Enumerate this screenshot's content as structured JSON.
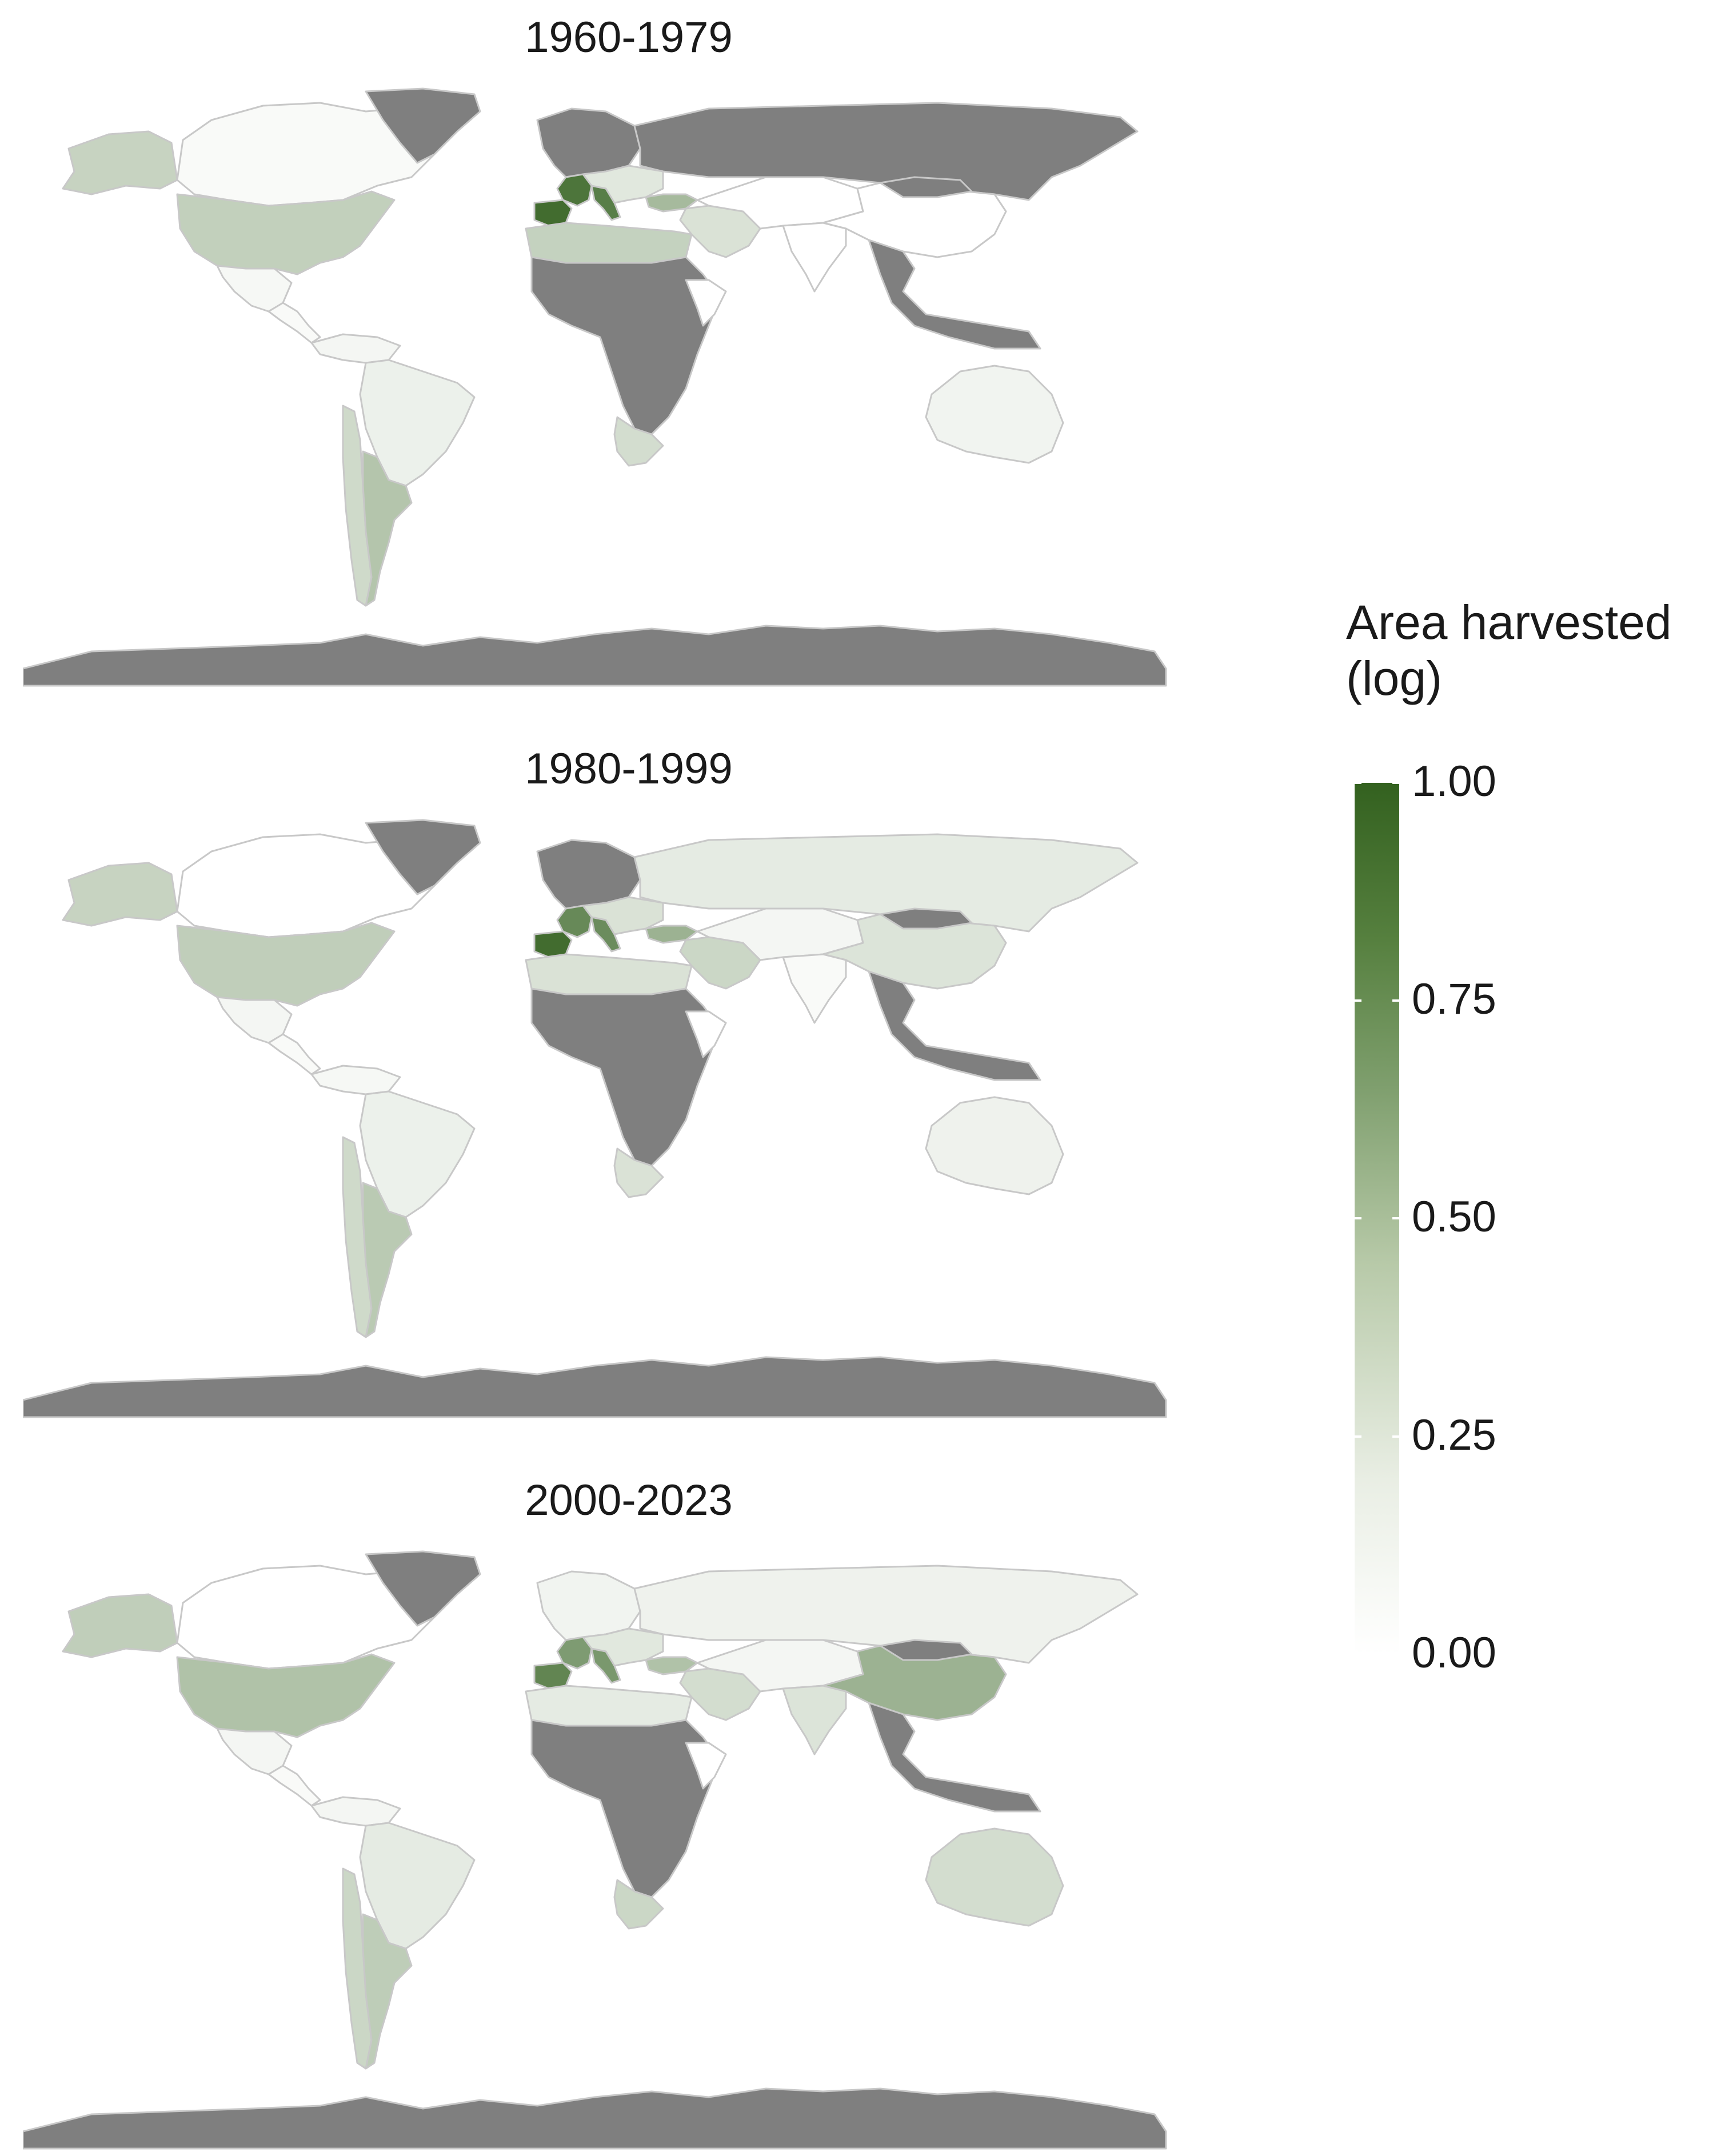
{
  "panels": [
    {
      "title": "1960-1979",
      "countries": {
        "canada": 0.02,
        "usa": 0.26,
        "alaska": 0.24,
        "greenland": "na",
        "mexico": 0.03,
        "central_america": 0.02,
        "south_america_north": 0.04,
        "brazil": 0.07,
        "argentina": 0.33,
        "chile": 0.2,
        "europe_north": "na",
        "russia": "na",
        "spain": 0.92,
        "france": 0.86,
        "italy": 0.8,
        "europe_central": 0.12,
        "turkey": 0.4,
        "middle_east": 0.15,
        "north_africa": 0.25,
        "africa": "na",
        "southern_africa": 0.18,
        "east_africa": 0.0,
        "central_asia": 0.0,
        "china": 0.0,
        "india": 0.0,
        "se_asia": "na",
        "australia": 0.05,
        "mongolia": "na",
        "antarctica": "na"
      }
    },
    {
      "title": "1980-1999",
      "countries": {
        "canada": 0.0,
        "usa": 0.27,
        "alaska": 0.24,
        "greenland": "na",
        "mexico": 0.04,
        "central_america": 0.02,
        "south_america_north": 0.03,
        "brazil": 0.07,
        "argentina": 0.3,
        "chile": 0.2,
        "europe_north": "na",
        "russia": 0.1,
        "spain": 0.92,
        "france": 0.72,
        "italy": 0.7,
        "europe_central": 0.15,
        "turkey": 0.45,
        "middle_east": 0.22,
        "north_africa": 0.15,
        "africa": "na",
        "southern_africa": 0.15,
        "east_africa": 0.0,
        "central_asia": 0.04,
        "china": 0.14,
        "india": 0.02,
        "se_asia": "na",
        "australia": 0.06,
        "mongolia": "na",
        "antarctica": "na"
      }
    },
    {
      "title": "2000-2023",
      "countries": {
        "canada": 0.0,
        "usa": 0.35,
        "alaska": 0.27,
        "greenland": "na",
        "mexico": 0.04,
        "central_america": 0.02,
        "south_america_north": 0.04,
        "brazil": 0.1,
        "argentina": 0.28,
        "chile": 0.22,
        "europe_north": 0.05,
        "russia": 0.06,
        "spain": 0.75,
        "france": 0.6,
        "italy": 0.62,
        "europe_central": 0.12,
        "turkey": 0.35,
        "middle_east": 0.18,
        "north_africa": 0.1,
        "africa": "na",
        "southern_africa": 0.22,
        "east_africa": 0.0,
        "central_asia": 0.04,
        "china": 0.45,
        "india": 0.14,
        "se_asia": "na",
        "australia": 0.18,
        "mongolia": "na",
        "antarctica": "na"
      }
    }
  ],
  "legend": {
    "title": "Area harvested\n(log)",
    "ticks": [
      "1.00",
      "0.75",
      "0.50",
      "0.25",
      "0.00"
    ],
    "tick_values": [
      1.0,
      0.75,
      0.5,
      0.25,
      0.0
    ],
    "scale_min": 0.0,
    "scale_max": 1.0,
    "color_low": "#ffffff",
    "color_high": "#33611f",
    "missing_color": "#7f7f7f",
    "border_color": "#c8c8c8"
  }
}
